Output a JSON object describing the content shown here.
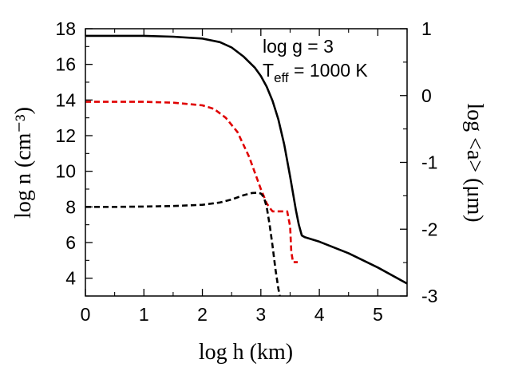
{
  "chart_data": {
    "type": "line",
    "xlabel": "log h (km)",
    "ylabel": "log n (cm⁻³)",
    "y2label": "log <a> (μm)",
    "xlim": [
      0,
      5.5
    ],
    "ylim": [
      3,
      18
    ],
    "y2lim": [
      -3,
      1
    ],
    "xticks": [
      "0",
      "1",
      "2",
      "3",
      "4",
      "5"
    ],
    "yticks": [
      "4",
      "6",
      "8",
      "10",
      "12",
      "14",
      "16",
      "18"
    ],
    "y2ticks": [
      "-3",
      "-2",
      "-1",
      "0",
      "1"
    ],
    "grid": false,
    "annotations": {
      "line1": "log g = 3",
      "line2_main": "T",
      "line2_sub": "eff",
      "line2_rest": " = 1000 K"
    },
    "series": [
      {
        "axis": "left",
        "color": "#000000",
        "dash": "solid",
        "x": [
          0,
          0.5,
          1,
          1.5,
          2,
          2.3,
          2.5,
          2.7,
          2.9,
          3.0,
          3.1,
          3.2,
          3.3,
          3.4,
          3.5,
          3.6,
          3.65,
          3.7,
          3.75,
          4.0,
          4.5,
          5.0,
          5.5
        ],
        "y": [
          17.6,
          17.6,
          17.6,
          17.55,
          17.45,
          17.25,
          16.95,
          16.45,
          15.8,
          15.35,
          14.75,
          13.95,
          12.9,
          11.5,
          9.7,
          7.8,
          7.0,
          6.4,
          6.3,
          6.05,
          5.4,
          4.6,
          3.7
        ]
      },
      {
        "axis": "left",
        "color": "#e00000",
        "dash": "dashed",
        "x": [
          0,
          1,
          1.5,
          2,
          2.2,
          2.4,
          2.6,
          2.8,
          2.9,
          3.0,
          3.05,
          3.1,
          3.15,
          3.2,
          3.3,
          3.45,
          3.5,
          3.52,
          3.55,
          3.6,
          3.63
        ],
        "y": [
          13.9,
          13.9,
          13.85,
          13.7,
          13.5,
          13.0,
          12.2,
          10.8,
          9.9,
          9.0,
          8.6,
          8.2,
          7.95,
          7.75,
          7.75,
          7.75,
          6.9,
          5.5,
          4.9,
          4.9,
          4.9
        ]
      },
      {
        "axis": "left",
        "color": "#000000",
        "dash": "dashed",
        "x": [
          0,
          0.5,
          1,
          1.5,
          2,
          2.3,
          2.5,
          2.7,
          2.85,
          2.95,
          3.0,
          3.05,
          3.1,
          3.15,
          3.2,
          3.25,
          3.3,
          3.33
        ],
        "y": [
          8.0,
          8.0,
          8.02,
          8.05,
          8.12,
          8.25,
          8.42,
          8.65,
          8.78,
          8.8,
          8.75,
          8.55,
          8.0,
          7.0,
          5.8,
          4.5,
          3.4,
          2.9
        ]
      }
    ]
  }
}
